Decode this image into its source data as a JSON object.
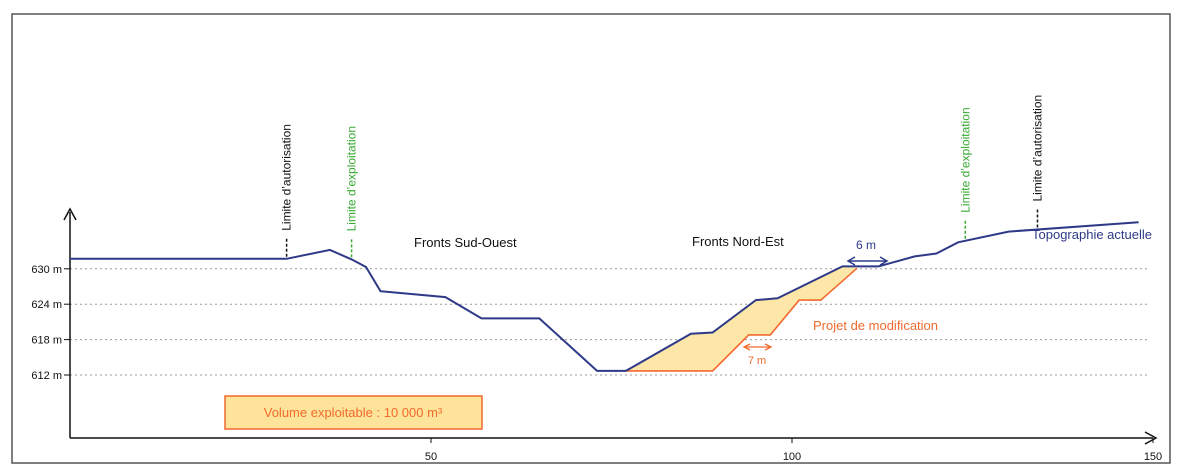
{
  "chart_data": {
    "type": "line",
    "title": "",
    "xlabel": "",
    "ylabel": "",
    "x_ticks": [
      50,
      100,
      150
    ],
    "y_ticks": [
      "612 m",
      "618 m",
      "624 m",
      "630 m"
    ],
    "series": [
      {
        "name": "Topographie actuelle",
        "points": [
          [
            0,
            631.7
          ],
          [
            30,
            631.7
          ],
          [
            36,
            633.2
          ],
          [
            39,
            631.6
          ],
          [
            41,
            630.3
          ],
          [
            43,
            626.2
          ],
          [
            52,
            625.2
          ],
          [
            57,
            621.6
          ],
          [
            65,
            621.6
          ],
          [
            73,
            612.7
          ],
          [
            77,
            612.7
          ],
          [
            86,
            619.0
          ],
          [
            89,
            619.2
          ],
          [
            95,
            624.7
          ],
          [
            98,
            625.0
          ],
          [
            107,
            630.4
          ],
          [
            112,
            630.4
          ],
          [
            117,
            632.1
          ],
          [
            120,
            632.6
          ],
          [
            123,
            634.5
          ],
          [
            130,
            636.3
          ],
          [
            148,
            637.9
          ]
        ]
      },
      {
        "name": "Projet de modification",
        "points": [
          [
            77,
            612.7
          ],
          [
            89,
            612.7
          ],
          [
            94,
            618.8
          ],
          [
            97,
            618.8
          ],
          [
            101,
            624.7
          ],
          [
            104,
            624.7
          ],
          [
            109,
            630.1
          ]
        ]
      }
    ],
    "limits": [
      {
        "label": "Limite d’autorisation",
        "x": 30,
        "color": "#111111"
      },
      {
        "label": "Limite d’exploitation",
        "x": 39,
        "color": "#3aaa35"
      },
      {
        "label": "Limite d’exploitation",
        "x": 124,
        "color": "#3aaa35"
      },
      {
        "label": "Limite d’autorisation",
        "x": 134,
        "color": "#111111"
      }
    ],
    "annotations": {
      "fronts_so": "Fronts Sud-Ouest",
      "fronts_ne": "Fronts Nord-Est",
      "width_top": "6 m",
      "width_bench": "7 m",
      "volume": "Volume exploitable : 10 000 m³"
    },
    "colors": {
      "topography": "#2e3a87",
      "project": "#f26a2e",
      "fill": "#fde7a8",
      "limit_auth": "#111111",
      "limit_expl": "#3aaa35",
      "volume_box_fill": "#fde49a",
      "volume_box_border": "#f26a2e"
    }
  }
}
